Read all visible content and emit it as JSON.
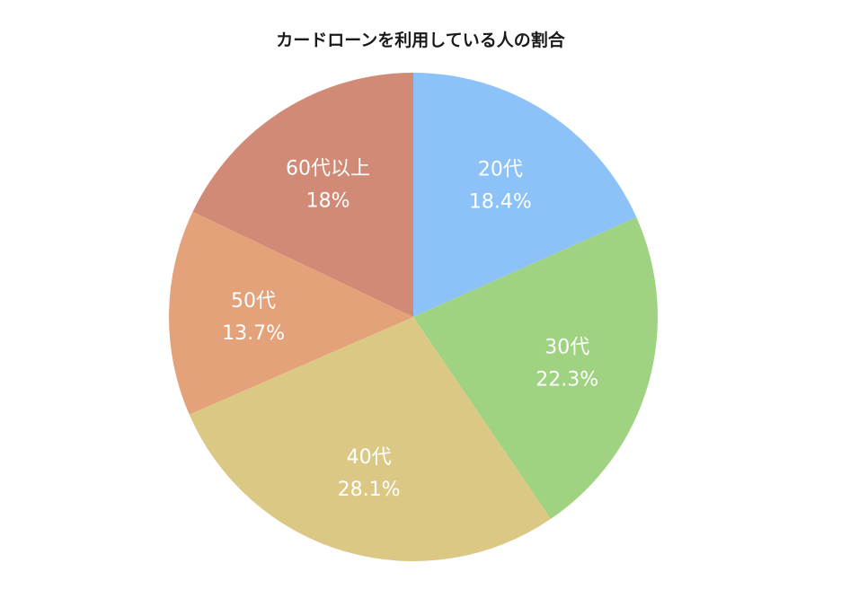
{
  "chart_data": {
    "type": "pie",
    "title": "カードローンを利用している人の割合",
    "slices": [
      {
        "label": "20代",
        "value": 18.4,
        "value_label": "18.4%",
        "color": "#8CC2F7"
      },
      {
        "label": "30代",
        "value": 22.3,
        "value_label": "22.3%",
        "color": "#9FD381"
      },
      {
        "label": "40代",
        "value": 28.1,
        "value_label": "28.1%",
        "color": "#DCC885"
      },
      {
        "label": "50代",
        "value": 13.7,
        "value_label": "13.7%",
        "color": "#E4A27A"
      },
      {
        "label": "60代以上",
        "value": 18,
        "value_label": "18%",
        "color": "#D08A76"
      }
    ],
    "start": "12 o'clock",
    "direction": "clockwise",
    "legend": "none"
  }
}
